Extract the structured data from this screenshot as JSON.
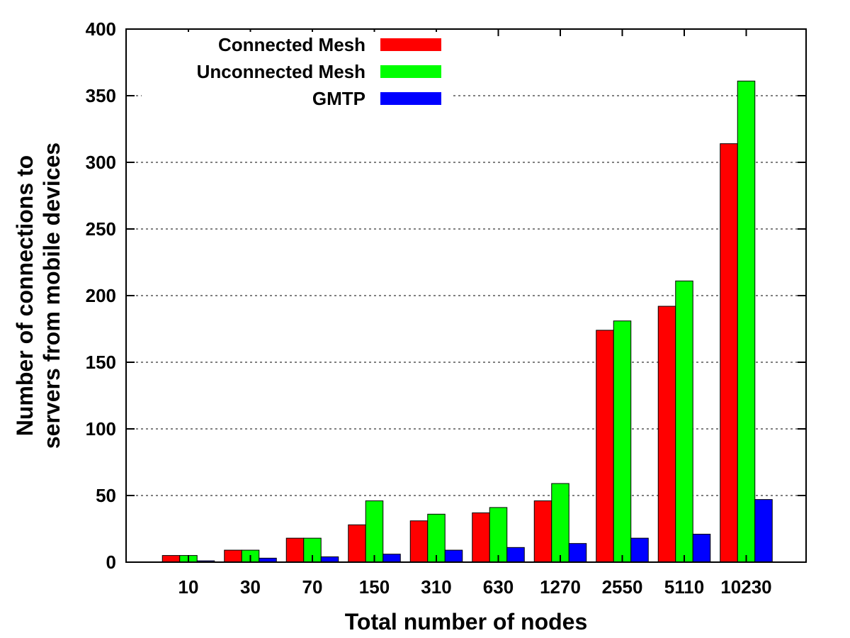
{
  "chart_data": {
    "type": "bar",
    "xlabel": "Total number of nodes",
    "ylabel_lines": [
      "Number of connections to",
      "servers from mobile devices"
    ],
    "categories": [
      "10",
      "30",
      "70",
      "150",
      "310",
      "630",
      "1270",
      "2550",
      "5110",
      "10230"
    ],
    "ylim": [
      0,
      400
    ],
    "yticks": [
      0,
      50,
      100,
      150,
      200,
      250,
      300,
      350,
      400
    ],
    "grid": "horizontal dashed",
    "legend_position": "top-left",
    "series": [
      {
        "name": "Connected Mesh",
        "color": "#ff0000",
        "values": [
          5,
          9,
          18,
          28,
          31,
          37,
          46,
          174,
          192,
          314
        ]
      },
      {
        "name": "Unconnected Mesh",
        "color": "#00ff00",
        "values": [
          5,
          9,
          18,
          46,
          36,
          41,
          59,
          181,
          211,
          361
        ]
      },
      {
        "name": "GMTP",
        "color": "#0000ff",
        "values": [
          1,
          3,
          4,
          6,
          9,
          11,
          14,
          18,
          21,
          47
        ]
      }
    ]
  }
}
